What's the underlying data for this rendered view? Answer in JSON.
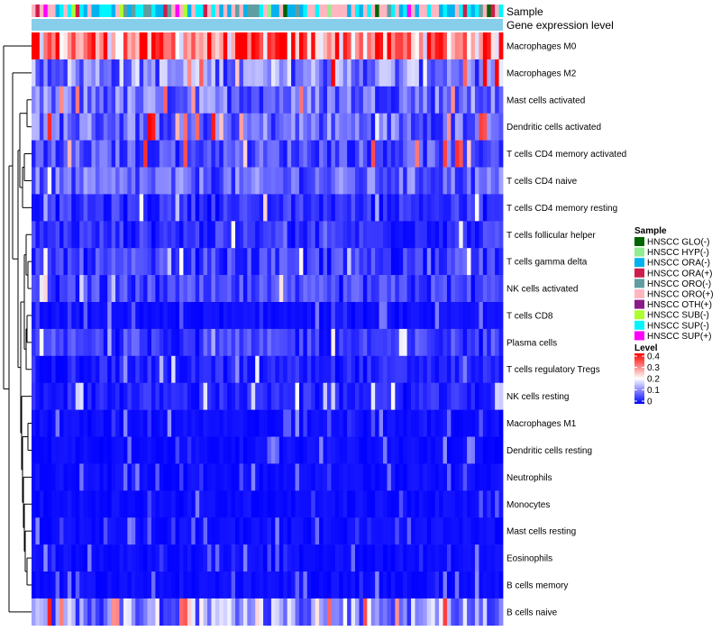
{
  "chart_data": {
    "type": "heatmap",
    "title": "",
    "annotation_tracks": [
      "Sample",
      "Gene expression level"
    ],
    "rows": [
      "Macrophages M0",
      "Macrophages M2",
      "Mast cells activated",
      "Dendritic cells activated",
      "T cells CD4 memory activated",
      "T cells CD4 naive",
      "T cells CD4 memory resting",
      "T cells follicular helper",
      "T cells gamma delta",
      "NK cells activated",
      "T cells CD8",
      "Plasma cells",
      "T cells regulatory  Tregs",
      "NK cells resting",
      "Macrophages M1",
      "Dendritic cells resting",
      "Neutrophils",
      "Monocytes",
      "Mast cells resting",
      "Eosinophils",
      "B cells memory",
      "B cells naive"
    ],
    "row_mean_levels": [
      0.3,
      0.1,
      0.08,
      0.08,
      0.06,
      0.07,
      0.04,
      0.04,
      0.05,
      0.05,
      0.02,
      0.05,
      0.03,
      0.03,
      0.01,
      0.01,
      0.01,
      0.01,
      0.01,
      0.01,
      0.01,
      0.1
    ],
    "n_samples": 118,
    "level_scale": {
      "title": "Level",
      "ticks": [
        "0.4",
        "0.3",
        "0.2",
        "0.1",
        "0"
      ],
      "range": [
        0,
        0.4
      ],
      "colors": {
        "low": "#0000ff",
        "mid": "#ffffff",
        "high": "#ff0000"
      }
    },
    "sample_legend": {
      "title": "Sample",
      "entries": [
        {
          "label": "HNSCC GLO(-)",
          "color": "#006400"
        },
        {
          "label": "HNSCC HYP(-)",
          "color": "#90ee90"
        },
        {
          "label": "HNSCC ORA(-)",
          "color": "#00b2ee"
        },
        {
          "label": "HNSCC ORA(+)",
          "color": "#cd1e4b"
        },
        {
          "label": "HNSCC ORO(-)",
          "color": "#5f9ea0"
        },
        {
          "label": "HNSCC ORO(+)",
          "color": "#ffb6c1"
        },
        {
          "label": "HNSCC OTH(+)",
          "color": "#8b1a89"
        },
        {
          "label": "HNSCC SUB(-)",
          "color": "#adff2f"
        },
        {
          "label": "HNSCC SUP(-)",
          "color": "#00f5ff"
        },
        {
          "label": "HNSCC SUP(+)",
          "color": "#ff00ff"
        }
      ]
    },
    "expression_track_color": "#87ceeb"
  }
}
